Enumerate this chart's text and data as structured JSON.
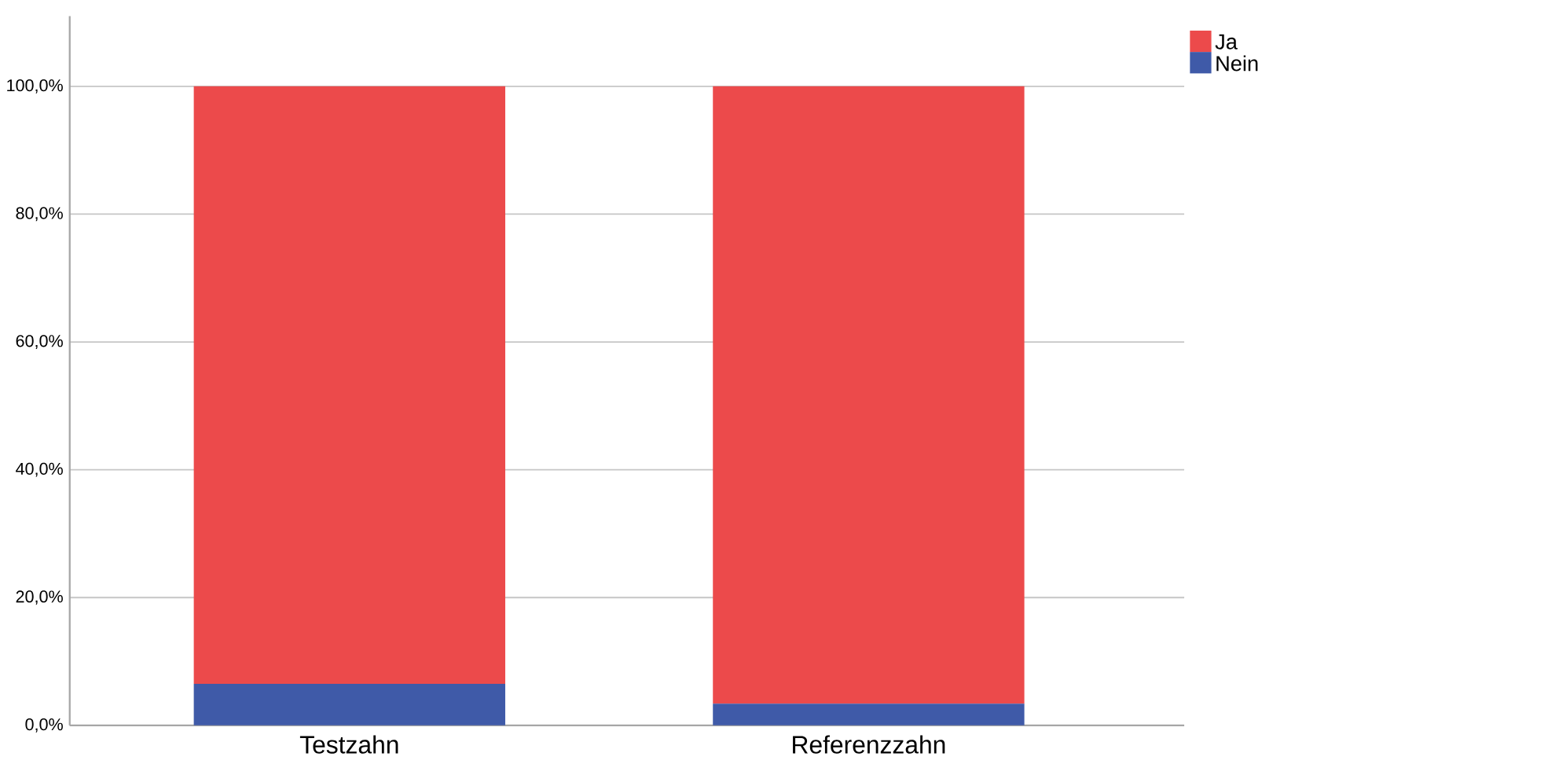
{
  "chart_data": {
    "type": "bar",
    "stacked": true,
    "categories": [
      "Testzahn",
      "Referenzzahn"
    ],
    "series": [
      {
        "name": "Nein",
        "color": "#3f5aa8",
        "values": [
          6.5,
          3.4
        ]
      },
      {
        "name": "Ja",
        "color": "#ec4a4b",
        "values": [
          93.5,
          96.6
        ]
      }
    ],
    "ylim": [
      0,
      111
    ],
    "yticks": [
      {
        "value": 0,
        "label": "0,0%"
      },
      {
        "value": 20,
        "label": "20,0%"
      },
      {
        "value": 40,
        "label": "40,0%"
      },
      {
        "value": 60,
        "label": "60,0%"
      },
      {
        "value": 80,
        "label": "80,0%"
      },
      {
        "value": 100,
        "label": "100,0%"
      }
    ],
    "grid": "y",
    "legend": "top right"
  }
}
